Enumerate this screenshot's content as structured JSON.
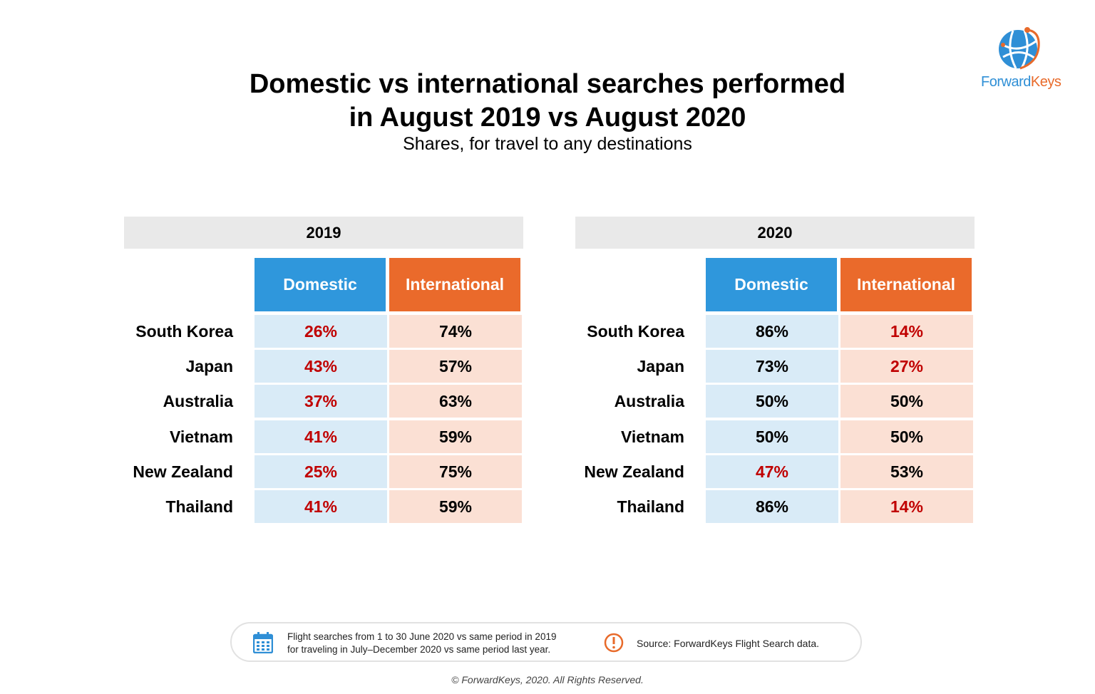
{
  "title_line1": "Domestic vs international searches performed",
  "title_line2": "in August 2019 vs August 2020",
  "subtitle": "Shares, for travel to any destinations",
  "logo": {
    "part1": "Forward",
    "part2": "Keys",
    "color_part1": "#2f8fd6",
    "color_part2": "#e86a2a"
  },
  "colors": {
    "domestic_header": "#2f97dc",
    "international_header": "#ea6a2b",
    "domestic_cell": "#d9ebf7",
    "international_cell": "#fbe0d4",
    "low_share_text": "#c00000"
  },
  "chart_data": [
    {
      "type": "table",
      "year": "2019",
      "columns": [
        "Domestic",
        "International"
      ],
      "rows": [
        {
          "country": "South Korea",
          "domestic": "26%",
          "international": "74%"
        },
        {
          "country": "Japan",
          "domestic": "43%",
          "international": "57%"
        },
        {
          "country": "Australia",
          "domestic": "37%",
          "international": "63%"
        },
        {
          "country": "Vietnam",
          "domestic": "41%",
          "international": "59%"
        },
        {
          "country": "New Zealand",
          "domestic": "25%",
          "international": "75%"
        },
        {
          "country": "Thailand",
          "domestic": "41%",
          "international": "59%"
        }
      ]
    },
    {
      "type": "table",
      "year": "2020",
      "columns": [
        "Domestic",
        "International"
      ],
      "rows": [
        {
          "country": "South Korea",
          "domestic": "86%",
          "international": "14%"
        },
        {
          "country": "Japan",
          "domestic": "73%",
          "international": "27%"
        },
        {
          "country": "Australia",
          "domestic": "50%",
          "international": "50%"
        },
        {
          "country": "Vietnam",
          "domestic": "50%",
          "international": "50%"
        },
        {
          "country": "New Zealand",
          "domestic": "47%",
          "international": "53%"
        },
        {
          "country": "Thailand",
          "domestic": "86%",
          "international": "14%"
        }
      ]
    }
  ],
  "footer": {
    "calendar_icon": "calendar-icon",
    "note_line1": "Flight searches from 1 to 30 June 2020 vs same period in 2019",
    "note_line2": "for traveling in July–December 2020 vs same period last year.",
    "alert_icon": "exclamation-circle-icon",
    "source": "Source: ForwardKeys Flight Search data."
  },
  "copyright": "© ForwardKeys, 2020. All Rights Reserved."
}
